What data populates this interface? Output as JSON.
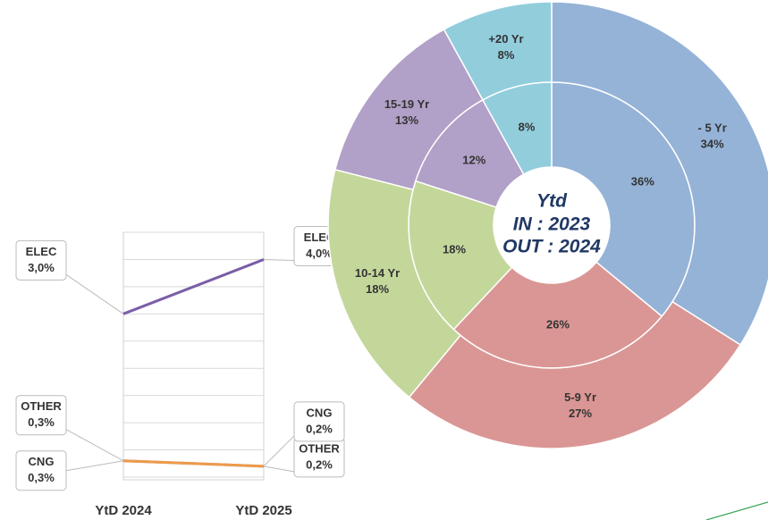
{
  "chart_data": [
    {
      "type": "line",
      "categories": [
        "YtD 2024",
        "YtD 2025"
      ],
      "series": [
        {
          "name": "ELEC",
          "color": "#7b5ea7",
          "values": [
            3.0,
            4.0
          ],
          "value_labels": [
            "3,0%",
            "4,0%"
          ]
        },
        {
          "name": "OTHER",
          "color": "#a5a5a5",
          "values": [
            0.3,
            0.2
          ],
          "value_labels": [
            "0,3%",
            "0,2%"
          ]
        },
        {
          "name": "CNG",
          "color": "#ed9a4a",
          "values": [
            0.3,
            0.2
          ],
          "value_labels": [
            "0,3%",
            "0,2%"
          ]
        }
      ],
      "ylim": [
        0,
        4.5
      ],
      "yticks": [
        0,
        0.5,
        1,
        1.5,
        2,
        2.5,
        3,
        3.5,
        4,
        4.5
      ],
      "grid": true
    },
    {
      "type": "donut",
      "title": "Ytd",
      "categories": [
        "- 5 Yr",
        "5-9 Yr",
        "10-14 Yr",
        "15-19 Yr",
        "+20 Yr"
      ],
      "colors": [
        "#95b3d7",
        "#da9694",
        "#c4d79b",
        "#b1a0c7",
        "#92cddc"
      ],
      "series": [
        {
          "name": "IN : 2023",
          "values": [
            36,
            26,
            18,
            12,
            8
          ],
          "value_labels": [
            "36%",
            "26%",
            "18%",
            "12%",
            "8%"
          ]
        },
        {
          "name": "OUT : 2024",
          "values": [
            34,
            27,
            18,
            13,
            8
          ],
          "value_labels": [
            "34%",
            "27%",
            "18%",
            "13%",
            "8%"
          ]
        }
      ]
    }
  ]
}
